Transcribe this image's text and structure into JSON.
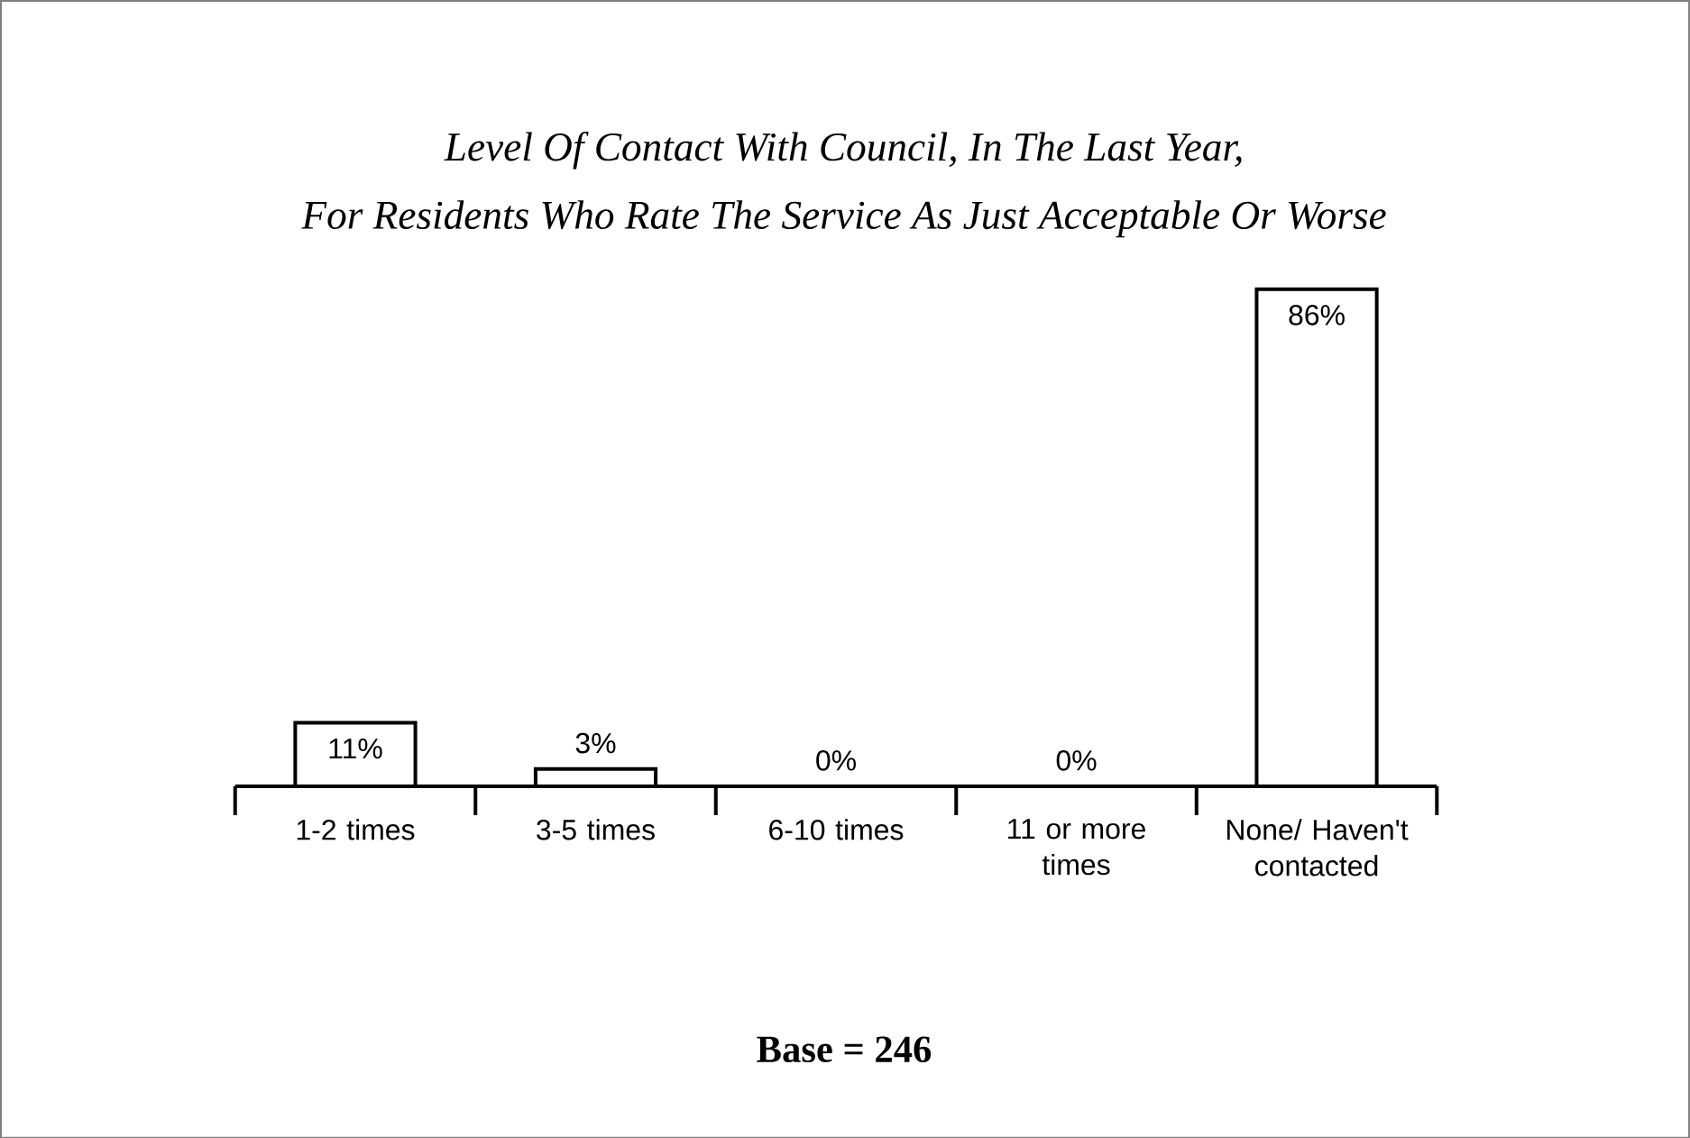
{
  "chart_data": {
    "type": "bar",
    "title": "Level Of Contact With Council, In The Last Year,",
    "subtitle": "For Residents Who Rate The Service As Just Acceptable Or Worse",
    "categories": [
      "1-2 times",
      "3-5 times",
      "6-10 times",
      "11 or more times",
      "None/ Haven't contacted"
    ],
    "values": [
      11,
      3,
      0,
      0,
      86
    ],
    "value_labels": [
      "11%",
      "3%",
      "0%",
      "0%",
      "86%"
    ],
    "color": "#ffffff",
    "annotations": [
      "Base = 246"
    ]
  }
}
